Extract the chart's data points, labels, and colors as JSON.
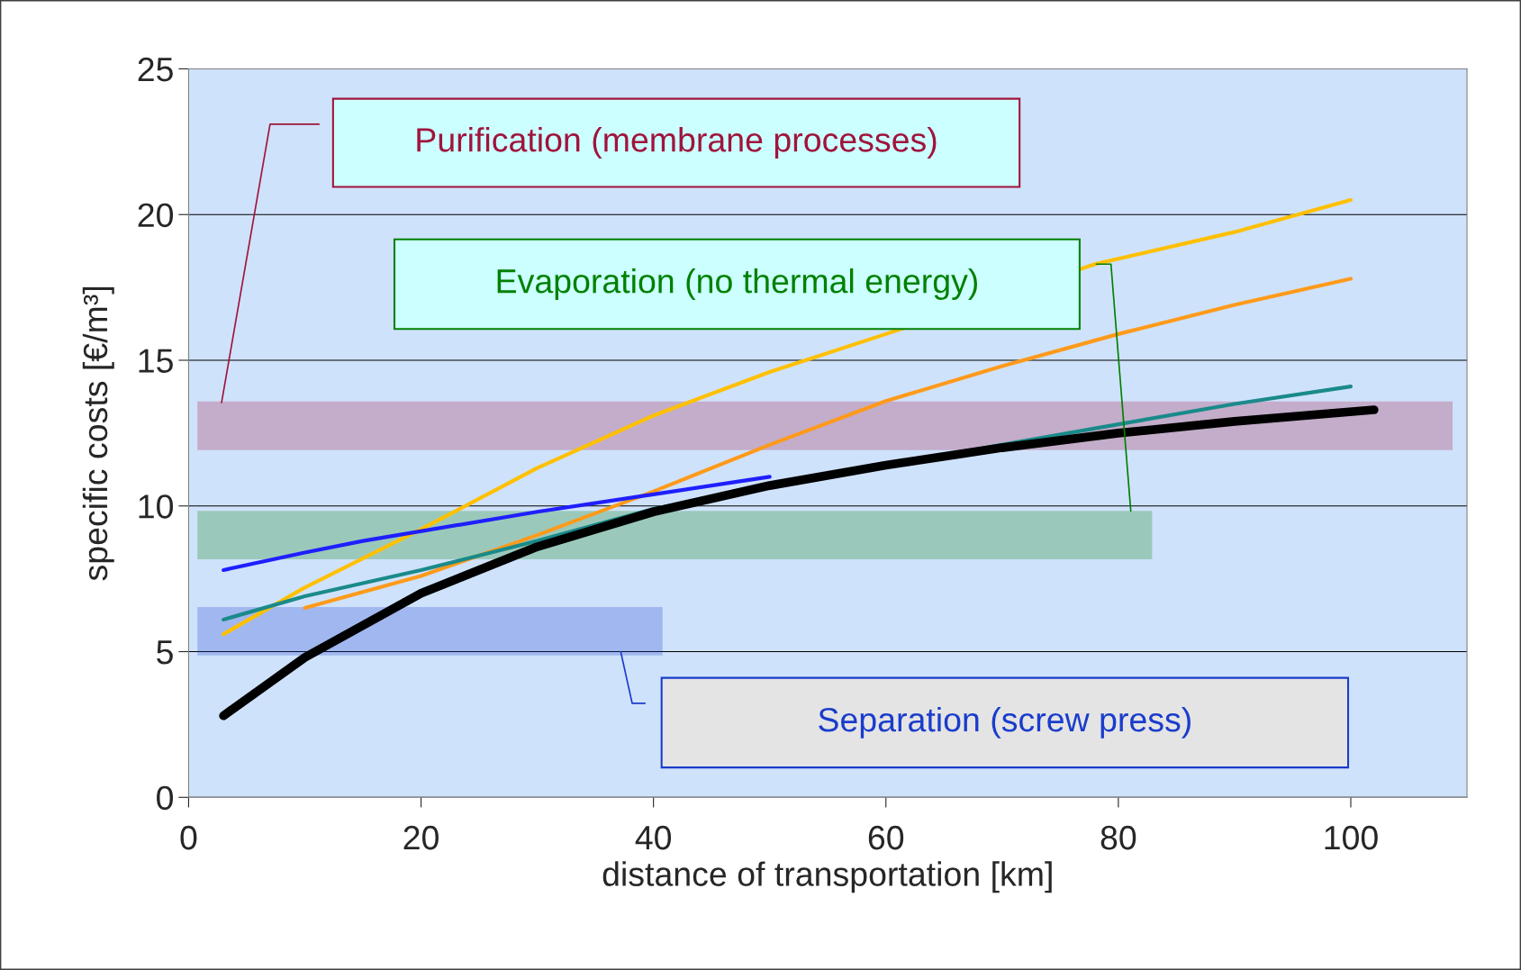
{
  "chart_data": {
    "type": "line",
    "xlabel": "distance of transportation [km]",
    "ylabel": "specific costs [€/m³]",
    "xlim": [
      0,
      110
    ],
    "ylim": [
      0,
      25
    ],
    "xticks": [
      0,
      20,
      40,
      60,
      80,
      100
    ],
    "yticks": [
      0,
      5,
      10,
      15,
      20,
      25
    ],
    "grid": "y",
    "line_style": "solid",
    "marker": "none",
    "series": [
      {
        "color": "#ffc000",
        "x": [
          3,
          10,
          20,
          30,
          40,
          50,
          60,
          78,
          90,
          100
        ],
        "values": [
          5.6,
          7.2,
          9.2,
          11.3,
          13.1,
          14.6,
          15.9,
          18.3,
          19.4,
          20.5
        ]
      },
      {
        "color": "#ff9a1a",
        "x": [
          10,
          20,
          30,
          40,
          50,
          60,
          70,
          80,
          90,
          100
        ],
        "values": [
          6.5,
          7.6,
          9.0,
          10.5,
          12.1,
          13.6,
          14.8,
          15.9,
          16.9,
          17.8
        ]
      },
      {
        "color": "#1f1fff",
        "x": [
          3,
          10,
          15,
          30,
          40,
          50
        ],
        "values": [
          7.8,
          8.4,
          8.8,
          9.8,
          10.4,
          11.0
        ]
      },
      {
        "color": "#1a8a8a",
        "x": [
          3,
          10,
          20,
          30,
          40,
          60,
          70,
          80,
          90,
          100
        ],
        "values": [
          6.1,
          6.9,
          7.8,
          8.8,
          9.9,
          11.4,
          12.1,
          12.8,
          13.5,
          14.1
        ]
      },
      {
        "color": "#000000",
        "x": [
          3,
          10,
          20,
          30,
          40,
          50,
          60,
          70,
          80,
          90,
          102
        ],
        "values": [
          2.8,
          4.8,
          7.0,
          8.6,
          9.8,
          10.7,
          11.4,
          12.0,
          12.5,
          12.9,
          13.3
        ]
      }
    ],
    "bands": [
      {
        "axis": "y",
        "from": 11.95,
        "to": 13.55,
        "label": "Purification (membrane processes)",
        "color": "#a0143c"
      },
      {
        "axis": "y",
        "from": 8.2,
        "to": 9.8,
        "label": "Evaporation (no thermal energy)",
        "color": "#008000"
      },
      {
        "axis": "y",
        "from": 4.9,
        "to": 6.5,
        "label": "Separation (screw press)",
        "color": "#1a3ccc"
      }
    ]
  }
}
